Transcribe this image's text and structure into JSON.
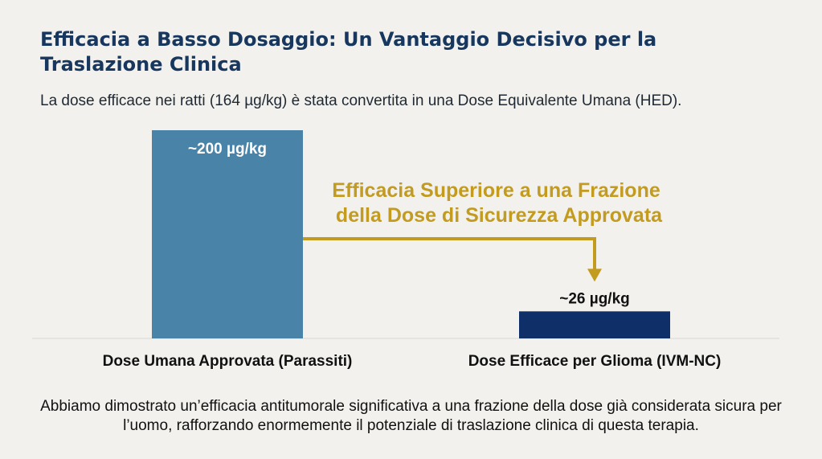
{
  "title": "Efficacia a Basso Dosaggio: Un Vantaggio Decisivo per la Traslazione Clinica",
  "subtitle": "La dose efficace nei ratti (164 µg/kg) è stata convertita in una Dose Equivalente Umana (HED).",
  "footer": "Abbiamo dimostrato un’efficacia antitumorale significativa a una frazione della dose già considerata sicura per l’uomo, rafforzando enormemente il potenziale di traslazione clinica di questa terapia.",
  "chart_data": {
    "type": "bar",
    "categories": [
      "Dose Umana Approvata (Parassiti)",
      "Dose Efficace per Glioma (IVM-NC)"
    ],
    "values": [
      200,
      26
    ],
    "data_labels": [
      "~200 µg/kg",
      "~26 µg/kg"
    ],
    "unit": "µg/kg",
    "ylim": [
      0,
      200
    ],
    "grid": false,
    "annotation": {
      "lines": [
        "Efficacia Superiore a una Frazione",
        "della Dose di Sicurezza Approvata"
      ]
    },
    "colors": {
      "bars": [
        "#4a83a8",
        "#0f2f68"
      ],
      "annotation": "#c29b1f",
      "baseline": "#d9d8d3"
    }
  }
}
